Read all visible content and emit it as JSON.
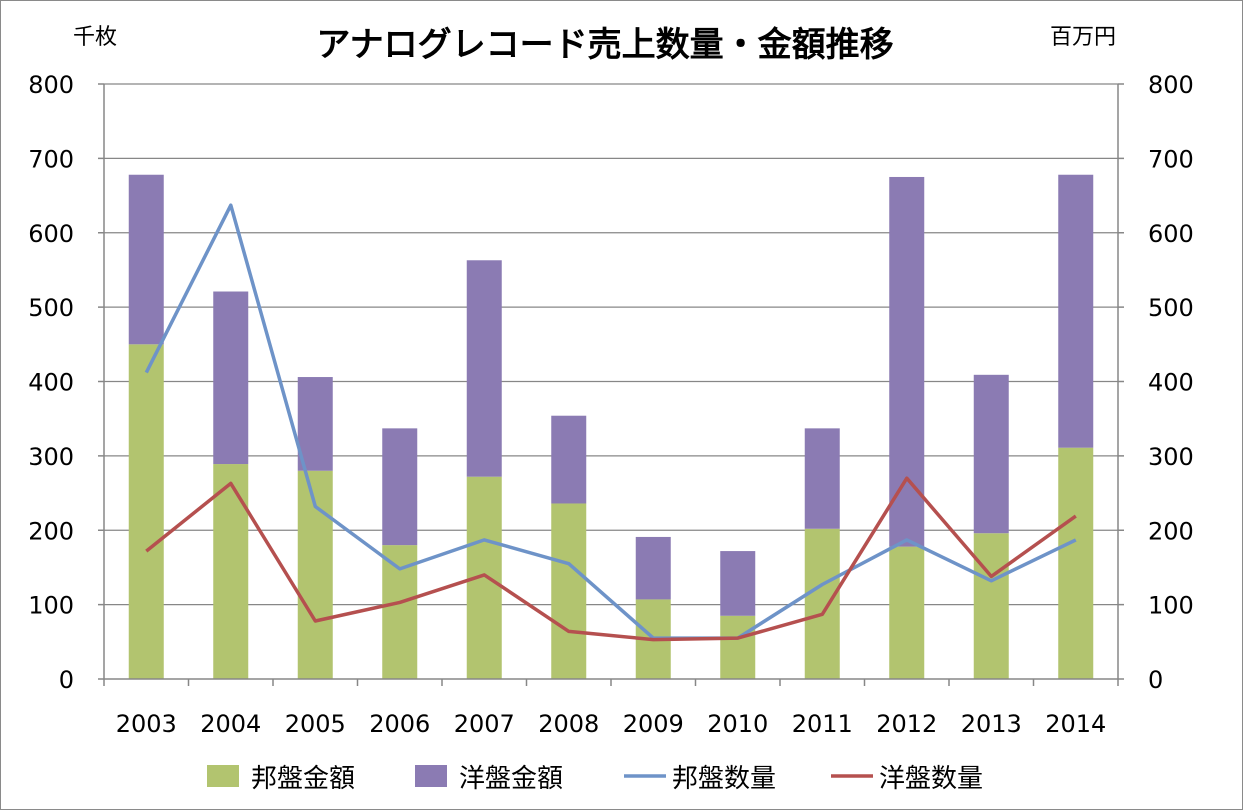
{
  "chart_data": {
    "type": "bar",
    "title": "アナログレコード売上数量・金額推移",
    "y_left_unit": "千枚",
    "y_right_unit": "百万円",
    "categories": [
      "2003",
      "2004",
      "2005",
      "2006",
      "2007",
      "2008",
      "2009",
      "2010",
      "2011",
      "2012",
      "2013",
      "2014"
    ],
    "ylim": [
      0,
      800
    ],
    "yticks": [
      0,
      100,
      200,
      300,
      400,
      500,
      600,
      700,
      800
    ],
    "y2lim": [
      0,
      800
    ],
    "grid": true,
    "legend_position": "bottom",
    "series": [
      {
        "name": "邦盤金額",
        "kind": "stacked-bar",
        "color": "#b2c46f",
        "values": [
          450,
          289,
          280,
          180,
          272,
          236,
          107,
          85,
          202,
          178,
          196,
          311
        ]
      },
      {
        "name": "洋盤金額",
        "kind": "stacked-bar",
        "color": "#8b7bb3",
        "values": [
          228,
          232,
          126,
          157,
          291,
          118,
          84,
          87,
          135,
          497,
          213,
          367
        ]
      },
      {
        "name": "邦盤数量",
        "kind": "line",
        "color": "#6e93c8",
        "values": [
          412,
          637,
          232,
          148,
          187,
          155,
          55,
          55,
          127,
          187,
          132,
          187
        ]
      },
      {
        "name": "洋盤数量",
        "kind": "line",
        "color": "#b5504f",
        "values": [
          172,
          263,
          78,
          103,
          140,
          64,
          53,
          55,
          87,
          270,
          138,
          219
        ]
      }
    ]
  }
}
